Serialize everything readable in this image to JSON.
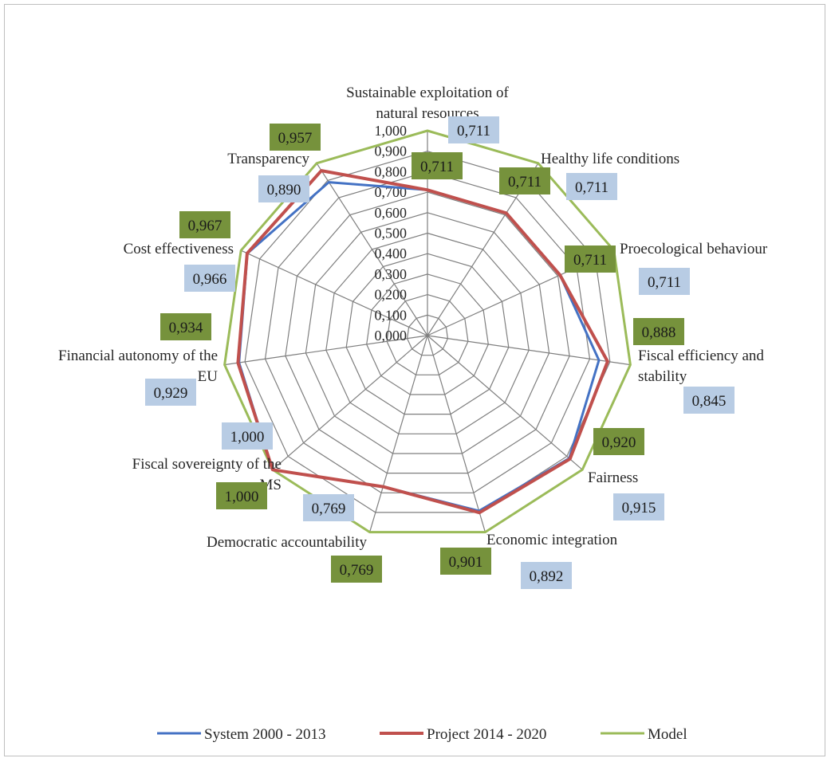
{
  "chart_data": {
    "type": "radar",
    "title": "",
    "categories": [
      "Sustainable exploitation of natural resources",
      "Healthy life conditions",
      "Proecological behaviour",
      "Fiscal efficiency and stability",
      "Fairness",
      "Economic integration",
      "Democratic accountability",
      "Fiscal sovereignty of the MS",
      "Financial autonomy of the EU",
      "Cost effectiveness",
      "Transparency"
    ],
    "category_lines": [
      [
        "Sustainable exploitation of",
        "natural resources"
      ],
      [
        "Healthy life conditions"
      ],
      [
        "Proecological behaviour"
      ],
      [
        "Fiscal efficiency and",
        "stability"
      ],
      [
        "Fairness"
      ],
      [
        "Economic integration"
      ],
      [
        "Democratic accountability"
      ],
      [
        "Fiscal sovereignty of the",
        "MS"
      ],
      [
        "Financial autonomy of the",
        "EU"
      ],
      [
        "Cost effectiveness"
      ],
      [
        "Transparency"
      ]
    ],
    "series": [
      {
        "name": "System 2000 - 2013",
        "color": "#4472c4",
        "values": [
          0.711,
          0.711,
          0.711,
          0.845,
          0.915,
          0.892,
          0.769,
          1.0,
          0.929,
          0.966,
          0.89
        ]
      },
      {
        "name": "Project 2014 - 2020",
        "color": "#c0504d",
        "values": [
          0.711,
          0.711,
          0.711,
          0.888,
          0.92,
          0.901,
          0.769,
          1.0,
          0.934,
          0.967,
          0.957
        ]
      },
      {
        "name": "Model",
        "color": "#9bbb59",
        "values": [
          1,
          1,
          1,
          1,
          1,
          1,
          1,
          1,
          1,
          1,
          1
        ]
      }
    ],
    "rlim": [
      0,
      1
    ],
    "tick_step": 0.1,
    "ticks": [
      "0,000",
      "0,100",
      "0,200",
      "0,300",
      "0,400",
      "0,500",
      "0,600",
      "0,700",
      "0,800",
      "0,900",
      "1,000"
    ],
    "data_labels": {
      "system": [
        "0,711",
        "0,711",
        "0,711",
        "0,845",
        "0,915",
        "0,892",
        "0,769",
        "1,000",
        "0,929",
        "0,966",
        "0,890"
      ],
      "project": [
        "0,711",
        "0,711",
        "0,711",
        "0,888",
        "0,920",
        "0,901",
        "0,769",
        "1,000",
        "0,934",
        "0,967",
        "0,957"
      ]
    },
    "label_colors": {
      "system_box": "#b8cce4",
      "project_box": "#76923c"
    },
    "legend_position": "bottom"
  }
}
